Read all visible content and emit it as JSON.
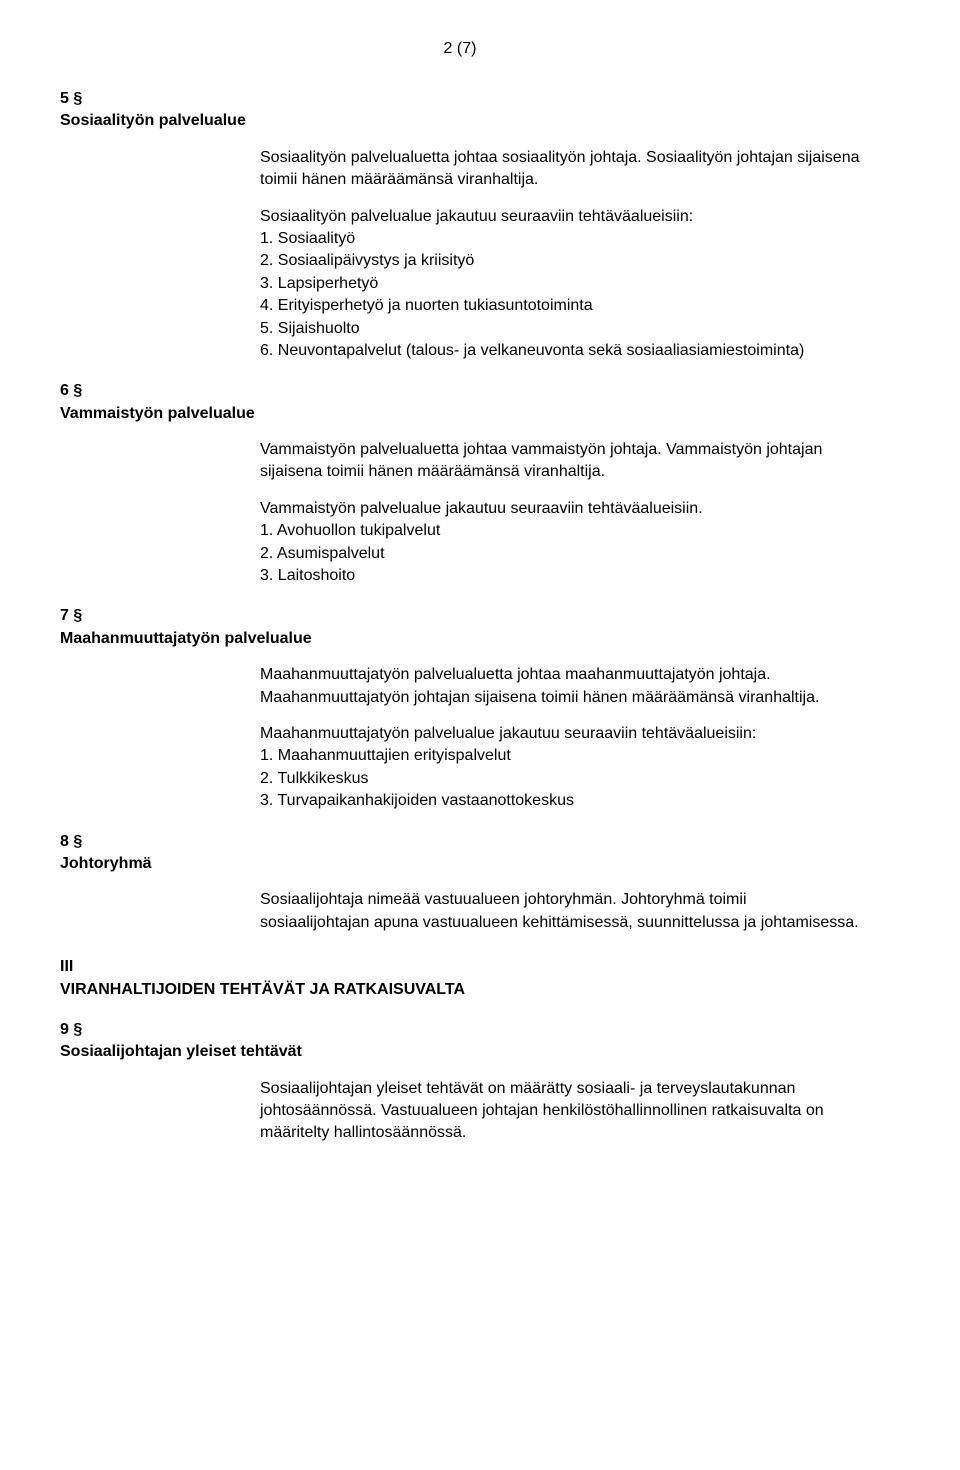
{
  "page_number": "2 (7)",
  "sections": [
    {
      "num": "5 §",
      "title": "Sosiaalityön palvelualue",
      "para1": "Sosiaalityön palvelualuetta johtaa sosiaalityön johtaja. Sosiaalityön johtajan sijaisena toimii hänen määräämänsä viranhaltija.",
      "list_intro": "Sosiaalityön palvelualue jakautuu seuraaviin tehtäväalueisiin:",
      "items": [
        "1. Sosiaalityö",
        "2. Sosiaalipäivystys ja kriisityö",
        "3. Lapsiperhetyö",
        "4. Erityisperhetyö ja nuorten tukiasuntotoiminta",
        "5. Sijaishuolto",
        "6. Neuvontapalvelut (talous- ja velkaneuvonta sekä sosiaaliasiamiestoiminta)"
      ]
    },
    {
      "num": "6 §",
      "title": "Vammaistyön palvelualue",
      "para1": "Vammaistyön palvelualuetta johtaa vammaistyön johtaja. Vammaistyön johtajan sijaisena toimii hänen määräämänsä viranhaltija.",
      "list_intro": "Vammaistyön palvelualue jakautuu seuraaviin tehtäväalueisiin.",
      "items": [
        "1. Avohuollon tukipalvelut",
        "2. Asumispalvelut",
        "3. Laitoshoito"
      ]
    },
    {
      "num": "7 §",
      "title": "Maahanmuuttajatyön palvelualue",
      "para1": "Maahanmuuttajatyön palvelualuetta johtaa maahanmuuttajatyön johtaja. Maahanmuuttajatyön johtajan sijaisena toimii hänen määräämänsä viranhaltija.",
      "list_intro": "Maahanmuuttajatyön palvelualue jakautuu seuraaviin tehtäväalueisiin:",
      "items": [
        "1. Maahanmuuttajien erityispalvelut",
        "2. Tulkkikeskus",
        "3. Turvapaikanhakijoiden vastaanottokeskus"
      ]
    },
    {
      "num": "8 §",
      "title": "Johtoryhmä",
      "para1": "Sosiaalijohtaja nimeää vastuualueen johtoryhmän. Johtoryhmä toimii sosiaalijohtajan apuna vastuualueen kehittämisessä, suunnittelussa ja johtamisessa.",
      "list_intro": "",
      "items": []
    }
  ],
  "chapter": {
    "num": "III",
    "title": "VIRANHALTIJOIDEN TEHTÄVÄT JA RATKAISUVALTA"
  },
  "section9": {
    "num": "9 §",
    "title": "Sosiaalijohtajan yleiset tehtävät",
    "para1": "Sosiaalijohtajan yleiset tehtävät on määrätty sosiaali- ja terveyslautakunnan johtosäännössä. Vastuualueen johtajan henkilöstöhallinnollinen ratkaisuvalta on määritelty hallintosäännössä."
  },
  "style": {
    "background": "#ffffff",
    "text_color": "#000000",
    "font_family": "Arial",
    "body_fontsize": 16,
    "heading_weight": "bold"
  }
}
